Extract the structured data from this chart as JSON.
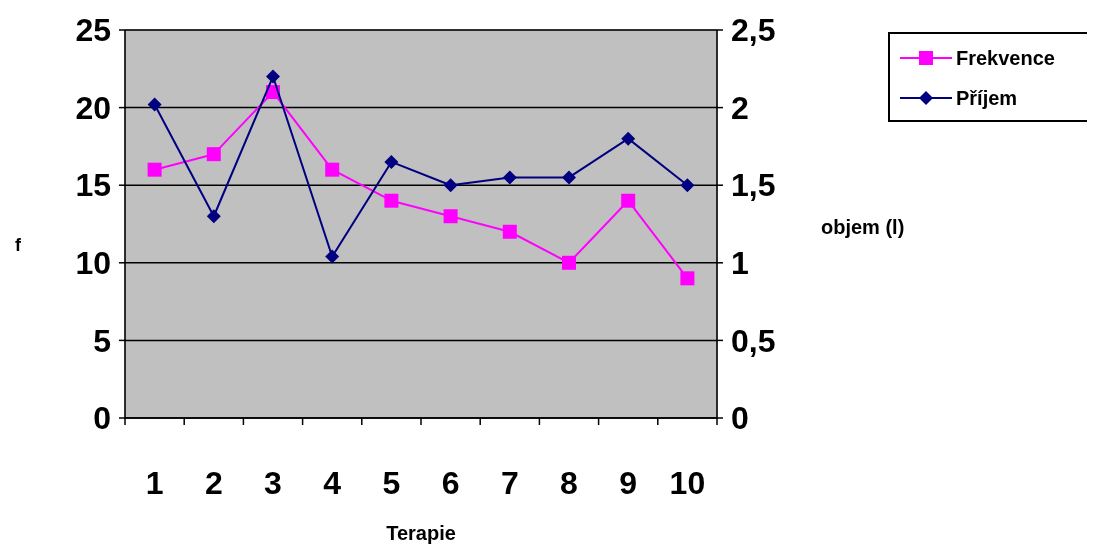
{
  "chart_data": {
    "type": "line",
    "xlabel": "Terapie",
    "ylabel": "f",
    "y2label": "objem (l)",
    "categories": [
      "1",
      "2",
      "3",
      "4",
      "5",
      "6",
      "7",
      "8",
      "9",
      "10"
    ],
    "series": [
      {
        "name": "Frekvence",
        "color": "#ff00ff",
        "marker": "square",
        "values": [
          16,
          17,
          21,
          16,
          14,
          13,
          12,
          10,
          14,
          9
        ]
      },
      {
        "name": "Příjem",
        "color": "#000080",
        "marker": "diamond",
        "axis": "y2",
        "values": [
          2.02,
          1.3,
          2.2,
          1.04,
          1.65,
          1.5,
          1.55,
          1.55,
          1.8,
          1.5
        ]
      }
    ],
    "ylim": [
      0,
      25
    ],
    "yticks": [
      0,
      5,
      10,
      15,
      20,
      25
    ],
    "y2lim": [
      0,
      2.5
    ],
    "y2ticks": [
      0,
      {
        "value": 0.5,
        "label": "0,5"
      },
      1,
      {
        "value": 1.5,
        "label": "1,5"
      },
      2,
      {
        "value": 2.5,
        "label": "2,5"
      }
    ],
    "grid": "y",
    "legend": "right",
    "line_style": "solid"
  }
}
